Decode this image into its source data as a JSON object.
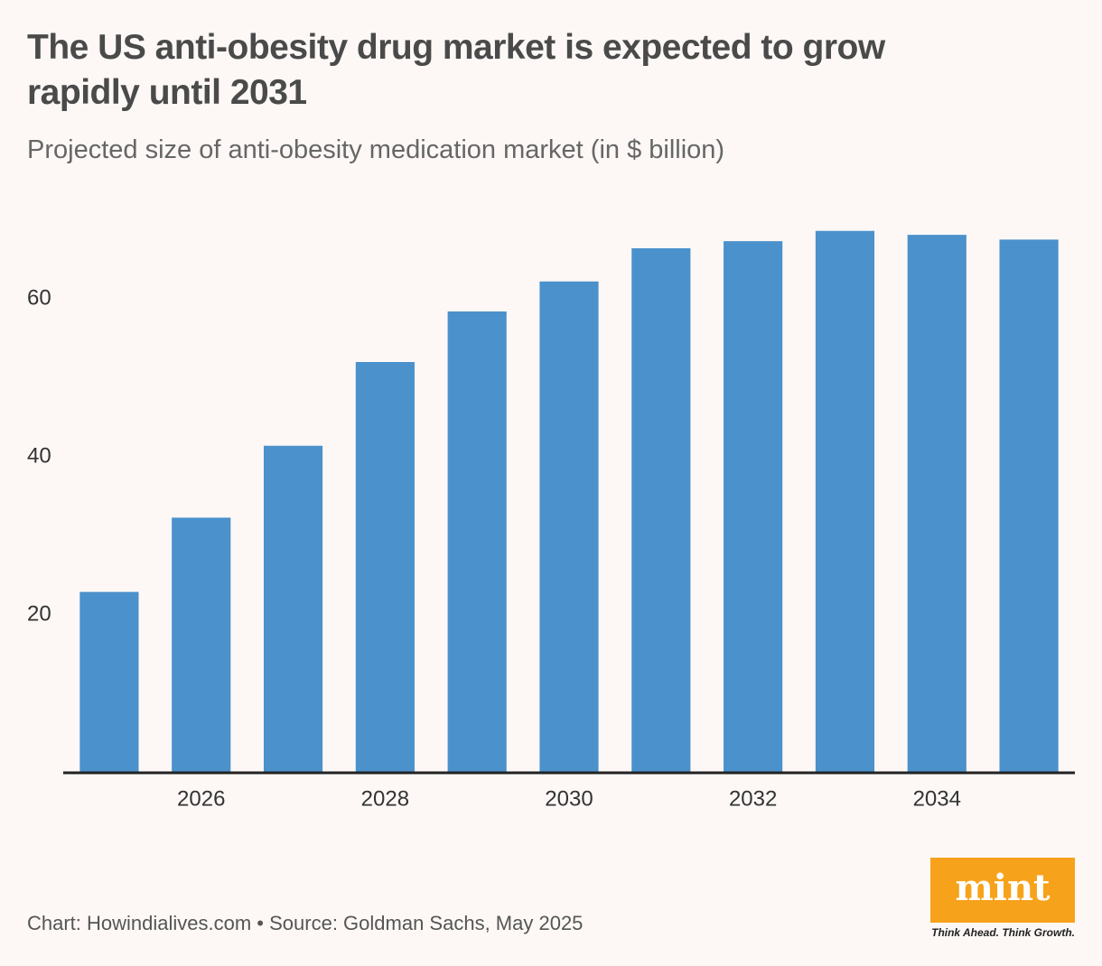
{
  "chart_data": {
    "type": "bar",
    "title": "The US anti-obesity drug market is expected to grow rapidly until 2031",
    "subtitle": "Projected size of anti-obesity medication market (in $ billion)",
    "x": [
      2025,
      2026,
      2027,
      2028,
      2029,
      2030,
      2031,
      2032,
      2033,
      2034,
      2035
    ],
    "values": [
      22.9,
      32.3,
      41.4,
      52.0,
      58.4,
      62.2,
      66.4,
      67.3,
      68.6,
      68.1,
      67.5
    ],
    "color": "#4b91cc",
    "xlim": [
      2024.5,
      2035.5
    ],
    "xticks": [
      2026,
      2028,
      2030,
      2032,
      2034
    ],
    "ylim": [
      0,
      72
    ],
    "yticks": [
      20,
      40,
      60
    ],
    "grid": false,
    "footer": "Chart: Howindialives.com • Source: Goldman Sachs, May 2025",
    "logo": "mint",
    "tagline": "Think Ahead. Think Growth."
  }
}
